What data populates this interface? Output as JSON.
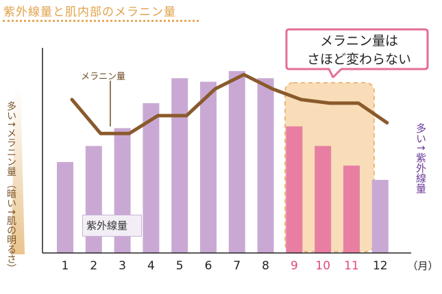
{
  "title": "紫外線量と肌内部のメラニン量",
  "left_axis_text": "多い↑メラニン量",
  "left_axis_paren": "（暗い↑肌の明るさ）",
  "right_axis_text": "多い↑紫外線量",
  "callout": {
    "line1": "メラニン量は",
    "line2": "さほど変わらない"
  },
  "legend_label": "紫外線量",
  "line_label": "メラニン量",
  "unit_label": "（月）",
  "colors": {
    "bar_normal": "#c9a9d4",
    "bar_highlight": "#e87fa3",
    "line": "#8a5a2c",
    "highlight_bg": "#f8ddb8",
    "title": "#e0a34a"
  },
  "chart_data": {
    "type": "bar",
    "categories": [
      "1",
      "2",
      "3",
      "4",
      "5",
      "6",
      "7",
      "8",
      "9",
      "10",
      "11",
      "12"
    ],
    "series": [
      {
        "name": "紫外線量",
        "values": [
          51,
          60,
          70,
          84,
          98,
          96,
          102,
          98,
          71,
          60,
          49,
          41
        ],
        "highlight": [
          false,
          false,
          false,
          false,
          false,
          false,
          false,
          false,
          true,
          true,
          true,
          false
        ]
      },
      {
        "name": "メラニン量",
        "type": "line",
        "values": [
          86,
          67,
          67,
          77,
          77,
          92,
          100,
          92,
          86,
          84,
          84,
          73
        ]
      }
    ],
    "ylim": [
      0,
      115
    ],
    "highlight_months": [
      "9",
      "10",
      "11"
    ],
    "xlabel": "（月）"
  }
}
